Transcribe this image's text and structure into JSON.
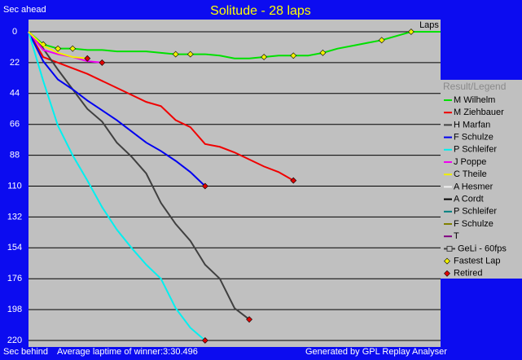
{
  "chart_data": {
    "type": "line",
    "title": "Solitude - 28 laps",
    "y_label_top": "Sec ahead",
    "y_label_bottom": "Sec behind",
    "x_label": "Laps",
    "footer_left": "Average laptime of winner:3:30.496",
    "footer_right": "Generated by GPL Replay Analyser",
    "legend_title": "Result/Legend",
    "legend": "right",
    "grid": true,
    "y_inverted": true,
    "xlim": [
      0,
      28
    ],
    "ylim": [
      0,
      220
    ],
    "yticks": [
      0,
      22,
      44,
      66,
      88,
      110,
      132,
      154,
      176,
      198,
      220
    ],
    "series": [
      {
        "name": "M Wilhelm",
        "color": "#00e000",
        "values": [
          0,
          9,
          12,
          12,
          13,
          13,
          14,
          14,
          14,
          15,
          16,
          16,
          16,
          17,
          19,
          19,
          18,
          17,
          17,
          17,
          15,
          12,
          10,
          8,
          6,
          3,
          0,
          0,
          0
        ],
        "fastest_laps": [
          1,
          2,
          3,
          10,
          11,
          16,
          18,
          20,
          24,
          26
        ]
      },
      {
        "name": "M Ziehbauer",
        "color": "#f00000",
        "values": [
          0,
          18,
          22,
          26,
          30,
          35,
          40,
          45,
          50,
          53,
          63,
          68,
          80,
          82,
          86,
          91,
          96,
          100,
          106
        ],
        "retired": true
      },
      {
        "name": "H Marfan",
        "color": "#404040",
        "values": [
          0,
          12,
          27,
          41,
          55,
          64,
          79,
          89,
          101,
          122,
          137,
          149,
          166,
          176,
          197,
          205
        ],
        "retired": true
      },
      {
        "name": "F Schulze",
        "color": "#0000f0",
        "values": [
          0,
          21,
          34,
          41,
          49,
          56,
          63,
          71,
          79,
          85,
          92,
          100,
          110
        ],
        "retired": true
      },
      {
        "name": "P Schleifer",
        "color": "#00f0f0",
        "values": [
          0,
          35,
          67,
          88,
          106,
          125,
          141,
          154,
          166,
          176,
          197,
          211,
          220
        ],
        "retired": true
      },
      {
        "name": "J Poppe",
        "color": "#f000f0",
        "values": [
          0,
          13,
          16,
          18,
          21,
          22
        ],
        "retired": true
      },
      {
        "name": "C Theile",
        "color": "#f0f000",
        "values": [
          0,
          10,
          15,
          18,
          19
        ],
        "retired": true
      },
      {
        "name": "A Hesmer",
        "color": "#f0f0f0"
      },
      {
        "name": "A Cordt",
        "color": "#000000"
      },
      {
        "name": "P Schleifer",
        "color": "#008080"
      },
      {
        "name": "F Schulze",
        "color": "#808000"
      },
      {
        "name": "T",
        "color": "#800080"
      },
      {
        "name": "GeLi - 60fps",
        "color": "#404040",
        "icon": "square"
      }
    ],
    "fastest_lap_label": "Fastest Lap",
    "fastest_lap_color": "#f0f000",
    "retired_label": "Retired",
    "retired_color": "#e00000"
  }
}
